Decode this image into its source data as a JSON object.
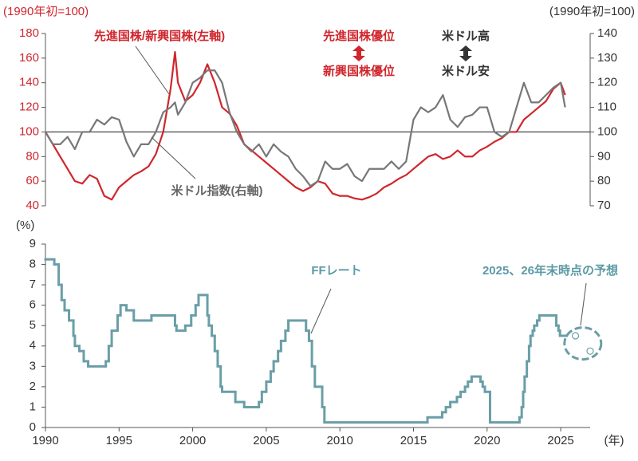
{
  "chart_data": [
    {
      "type": "line",
      "y_label": "(1990年初=100)",
      "y2_label": "(1990年初=100)",
      "x": [
        1990,
        1990.5,
        1991,
        1991.5,
        1992,
        1992.5,
        1993,
        1993.5,
        1994,
        1994.5,
        1995,
        1995.5,
        1996,
        1996.5,
        1997,
        1997.5,
        1998,
        1998.5,
        1998.8,
        1999,
        1999.5,
        2000,
        2000.5,
        2001,
        2001.5,
        2002,
        2002.5,
        2003,
        2003.5,
        2004,
        2004.5,
        2005,
        2005.5,
        2006,
        2006.5,
        2007,
        2007.5,
        2008,
        2008.5,
        2009,
        2009.5,
        2010,
        2010.5,
        2011,
        2011.5,
        2012,
        2012.5,
        2013,
        2013.5,
        2014,
        2014.5,
        2015,
        2015.5,
        2016,
        2016.5,
        2017,
        2017.5,
        2018,
        2018.5,
        2019,
        2019.5,
        2020,
        2020.5,
        2021,
        2021.5,
        2022,
        2022.5,
        2023,
        2023.5,
        2024,
        2024.5,
        2025,
        2025.3
      ],
      "series": [
        {
          "name": "先進国株/新興国株(左軸)",
          "color": "#d0262d",
          "values": [
            100,
            90,
            80,
            70,
            60,
            58,
            65,
            62,
            48,
            45,
            55,
            60,
            65,
            68,
            72,
            82,
            100,
            135,
            165,
            140,
            125,
            130,
            140,
            155,
            140,
            120,
            115,
            105,
            90,
            85,
            80,
            75,
            70,
            65,
            60,
            55,
            52,
            55,
            60,
            58,
            50,
            48,
            48,
            46,
            45,
            47,
            50,
            55,
            58,
            62,
            65,
            70,
            75,
            80,
            82,
            78,
            80,
            85,
            80,
            80,
            85,
            88,
            92,
            95,
            100,
            100,
            110,
            115,
            120,
            125,
            135,
            140,
            130
          ]
        },
        {
          "name": "米ドル指数(右軸)",
          "color": "#777777",
          "axis": "y2",
          "values": [
            100,
            95,
            95,
            98,
            93,
            100,
            100,
            105,
            103,
            106,
            105,
            96,
            90,
            95,
            95,
            100,
            108,
            110,
            112,
            107,
            112,
            120,
            122,
            125,
            125,
            120,
            108,
            100,
            95,
            92,
            95,
            90,
            95,
            92,
            90,
            85,
            82,
            78,
            80,
            88,
            85,
            85,
            87,
            82,
            80,
            85,
            85,
            85,
            88,
            85,
            88,
            105,
            110,
            108,
            110,
            115,
            105,
            102,
            106,
            107,
            110,
            110,
            100,
            98,
            100,
            110,
            120,
            112,
            112,
            115,
            118,
            120,
            110
          ]
        }
      ],
      "annotations": [
        "先進国株優位",
        "新興国株優位",
        "米ドル高",
        "米ドル安"
      ],
      "xlim": [
        1990,
        2027
      ],
      "ylim": [
        40,
        180
      ],
      "yticks": [
        40,
        60,
        80,
        100,
        120,
        140,
        160,
        180
      ],
      "y2lim": [
        70,
        140
      ],
      "y2ticks": [
        70,
        80,
        90,
        100,
        110,
        120,
        130,
        140
      ],
      "baseline": 100
    },
    {
      "type": "line",
      "y_label": "(%)",
      "x_label": "(年)",
      "x": [
        1990,
        1990.6,
        1990.9,
        1991.1,
        1991.3,
        1991.6,
        1991.9,
        1992,
        1992.3,
        1992.6,
        1992.9,
        1994.1,
        1994.3,
        1994.5,
        1994.9,
        1995.1,
        1995.5,
        1996,
        1997.2,
        1998.8,
        1998.9,
        1999.5,
        1999.9,
        2000.2,
        2000.4,
        2001,
        2001.1,
        2001.3,
        2001.5,
        2001.7,
        2001.9,
        2002,
        2002.9,
        2003.5,
        2004.5,
        2004.7,
        2005,
        2005.3,
        2005.5,
        2005.8,
        2006,
        2006.3,
        2006.5,
        2007.7,
        2007.9,
        2008.1,
        2008.3,
        2008.8,
        2008.95,
        2015.95,
        2016.95,
        2017.2,
        2017.5,
        2017.95,
        2018.2,
        2018.5,
        2018.7,
        2018.95,
        2019.55,
        2019.7,
        2019.85,
        2020.2,
        2022.2,
        2022.35,
        2022.45,
        2022.55,
        2022.7,
        2022.85,
        2022.95,
        2023.1,
        2023.2,
        2023.4,
        2023.55,
        2024.7,
        2024.85,
        2024.95,
        2025.3
      ],
      "series": [
        {
          "name": "FFレート",
          "color": "#6a9ea7",
          "values": [
            8.25,
            8,
            7,
            6.25,
            5.75,
            5.25,
            4.5,
            4,
            3.75,
            3.25,
            3,
            3.25,
            4,
            4.75,
            5.5,
            6,
            5.75,
            5.25,
            5.5,
            5,
            4.75,
            5,
            5.5,
            6,
            6.5,
            5.5,
            5,
            4.5,
            3.75,
            3,
            2,
            1.75,
            1.25,
            1,
            1.25,
            1.75,
            2.25,
            2.75,
            3.25,
            3.75,
            4.25,
            4.75,
            5.25,
            4.75,
            4.25,
            3,
            2,
            1,
            0.25,
            0.5,
            0.75,
            1,
            1.25,
            1.5,
            1.75,
            2,
            2.25,
            2.5,
            2.25,
            2,
            1.75,
            0.25,
            0.5,
            1,
            1.75,
            2.5,
            3.25,
            4,
            4.5,
            4.75,
            5,
            5.25,
            5.5,
            5,
            4.75,
            4.5,
            4.5
          ]
        }
      ],
      "forecast": {
        "name": "2025、26年末時点の予想",
        "color": "#6a9ea7",
        "x": [
          2026,
          2027
        ],
        "values": [
          4.5,
          3.75
        ]
      },
      "xlim": [
        1990,
        2027
      ],
      "xticks": [
        1990,
        1995,
        2000,
        2005,
        2010,
        2015,
        2020,
        2025
      ],
      "ylim": [
        0,
        9
      ],
      "yticks": [
        0,
        1,
        2,
        3,
        4,
        5,
        6,
        7,
        8,
        9
      ]
    }
  ]
}
